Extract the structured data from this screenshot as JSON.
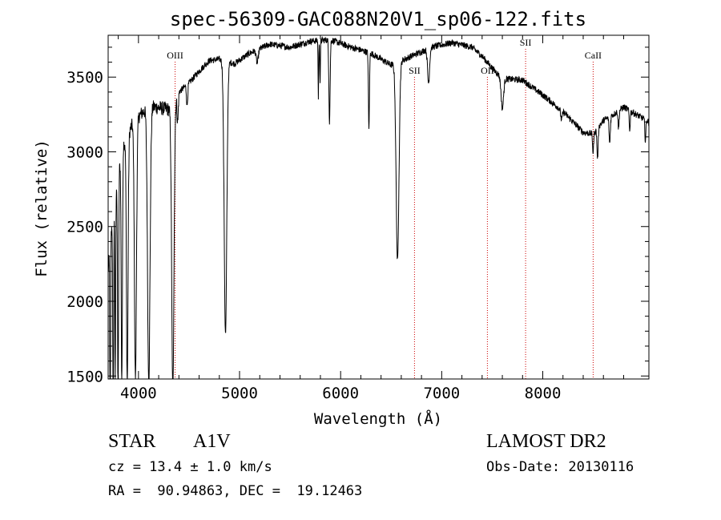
{
  "chart_data": {
    "type": "line",
    "title": "spec-56309-GAC088N20V1_sp06-122.fits",
    "xlabel": "Wavelength (Å)",
    "ylabel": "Flux (relative)",
    "xlim": [
      3700,
      9050
    ],
    "ylim": [
      1480,
      3780
    ],
    "xticks": [
      4000,
      5000,
      6000,
      7000,
      8000
    ],
    "yticks": [
      1500,
      2000,
      2500,
      3000,
      3500
    ],
    "grid": false,
    "line_markers": [
      {
        "label": "OIII",
        "wavelength": 4363
      },
      {
        "label": "SII",
        "wavelength": 6731
      },
      {
        "label": "OII",
        "wavelength": 7452
      },
      {
        "label": "SII",
        "wavelength": 7830
      },
      {
        "label": "CaII",
        "wavelength": 8498
      }
    ],
    "continuum": [
      [
        3700,
        2200
      ],
      [
        3760,
        2700
      ],
      [
        3850,
        3050
      ],
      [
        3950,
        3200
      ],
      [
        4050,
        3270
      ],
      [
        4150,
        3300
      ],
      [
        4250,
        3290
      ],
      [
        4330,
        3280
      ],
      [
        4400,
        3400
      ],
      [
        4500,
        3460
      ],
      [
        4600,
        3540
      ],
      [
        4700,
        3610
      ],
      [
        4800,
        3620
      ],
      [
        4950,
        3590
      ],
      [
        5100,
        3660
      ],
      [
        5300,
        3720
      ],
      [
        5500,
        3700
      ],
      [
        5700,
        3740
      ],
      [
        5900,
        3750
      ],
      [
        6100,
        3700
      ],
      [
        6300,
        3660
      ],
      [
        6500,
        3580
      ],
      [
        6700,
        3640
      ],
      [
        6900,
        3700
      ],
      [
        7100,
        3730
      ],
      [
        7300,
        3700
      ],
      [
        7400,
        3640
      ],
      [
        7500,
        3560
      ],
      [
        7600,
        3490
      ],
      [
        7800,
        3480
      ],
      [
        8000,
        3380
      ],
      [
        8200,
        3270
      ],
      [
        8400,
        3130
      ],
      [
        8500,
        3120
      ],
      [
        8600,
        3210
      ],
      [
        8700,
        3250
      ],
      [
        8800,
        3300
      ],
      [
        8900,
        3260
      ],
      [
        9050,
        3200
      ]
    ],
    "absorption_features": [
      {
        "center": 3720,
        "depth": 2400,
        "width": 3
      },
      {
        "center": 3750,
        "depth": 1900,
        "width": 4
      },
      {
        "center": 3770,
        "depth": 1300,
        "width": 4
      },
      {
        "center": 3798,
        "depth": 1600,
        "width": 5
      },
      {
        "center": 3835,
        "depth": 1550,
        "width": 6
      },
      {
        "center": 3889,
        "depth": 1650,
        "width": 8
      },
      {
        "center": 3970,
        "depth": 1750,
        "width": 10
      },
      {
        "center": 4102,
        "depth": 1850,
        "width": 12
      },
      {
        "center": 4340,
        "depth": 1950,
        "width": 11
      },
      {
        "center": 4388,
        "depth": 180,
        "width": 6
      },
      {
        "center": 4481,
        "depth": 140,
        "width": 6
      },
      {
        "center": 4861,
        "depth": 1830,
        "width": 13
      },
      {
        "center": 5175,
        "depth": 90,
        "width": 10
      },
      {
        "center": 5780,
        "depth": 380,
        "width": 3
      },
      {
        "center": 5797,
        "depth": 280,
        "width": 3
      },
      {
        "center": 5890,
        "depth": 550,
        "width": 6
      },
      {
        "center": 6280,
        "depth": 520,
        "width": 5
      },
      {
        "center": 6563,
        "depth": 1330,
        "width": 14
      },
      {
        "center": 6870,
        "depth": 230,
        "width": 10
      },
      {
        "center": 7600,
        "depth": 200,
        "width": 12
      },
      {
        "center": 8185,
        "depth": 60,
        "width": 8
      },
      {
        "center": 8498,
        "depth": 130,
        "width": 5
      },
      {
        "center": 8542,
        "depth": 200,
        "width": 6
      },
      {
        "center": 8662,
        "depth": 180,
        "width": 6
      },
      {
        "center": 8750,
        "depth": 120,
        "width": 5
      },
      {
        "center": 8860,
        "depth": 130,
        "width": 5
      },
      {
        "center": 9015,
        "depth": 140,
        "width": 5
      }
    ],
    "noise_amplitude": 22,
    "colors": {
      "spectrum": "#000000",
      "markers": "#cc0000",
      "axes": "#000000"
    }
  },
  "footer": {
    "object_type": "STAR",
    "subclass": "A1V",
    "survey": "LAMOST DR2",
    "cz_text": "cz = 13.4 ± 1.0 km/s",
    "obs_date": "Obs-Date: 20130116",
    "coords": "RA =  90.94863, DEC =  19.12463"
  }
}
